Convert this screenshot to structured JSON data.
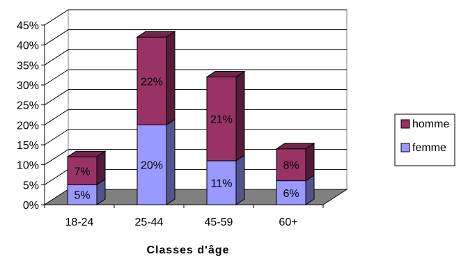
{
  "chart_data": {
    "type": "bar",
    "stacked": true,
    "three_d": true,
    "categories": [
      "18-24",
      "25-44",
      "45-59",
      "60+"
    ],
    "series": [
      {
        "name": "femme",
        "values": [
          5,
          20,
          11,
          6
        ],
        "labels": [
          "5%",
          "20%",
          "11%",
          "6%"
        ]
      },
      {
        "name": "homme",
        "values": [
          7,
          22,
          21,
          8
        ],
        "labels": [
          "7%",
          "22%",
          "21%",
          "8%"
        ]
      }
    ],
    "xlabel": "Classes d'âge",
    "ylabel": "",
    "ylim": [
      0,
      45
    ],
    "yticks": [
      "0%",
      "5%",
      "10%",
      "15%",
      "20%",
      "25%",
      "30%",
      "35%",
      "40%",
      "45%"
    ],
    "grid": true,
    "legend_position": "right",
    "colors": {
      "femme": "#9999ff",
      "homme": "#993366",
      "floor": "#808080",
      "wall": "#ffffff",
      "grid": "#000000"
    }
  }
}
